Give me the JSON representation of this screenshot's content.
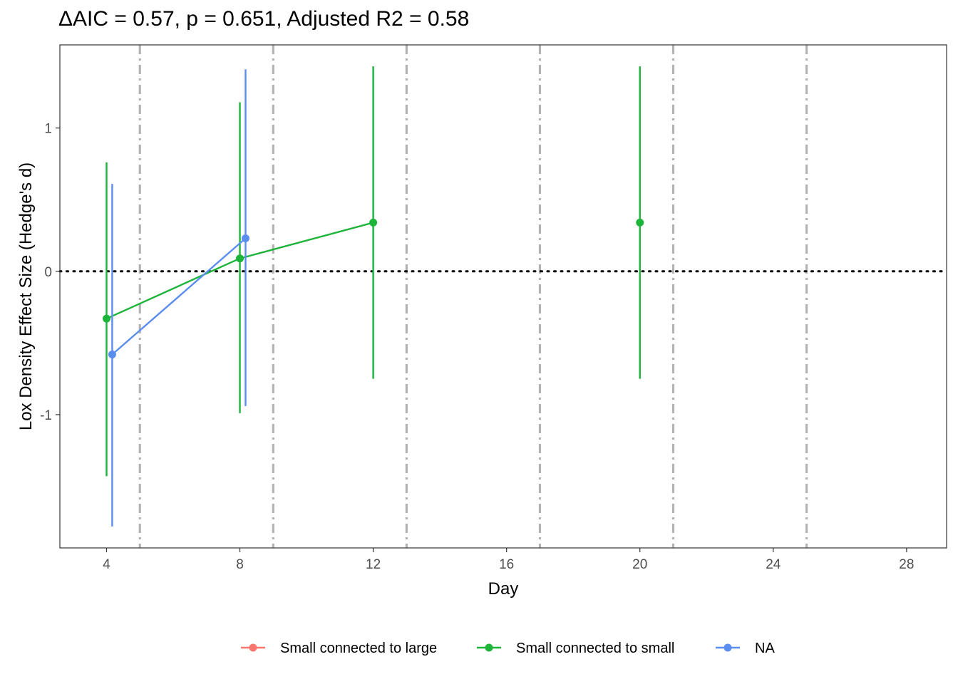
{
  "chart_data": {
    "type": "line",
    "title": "ΔAIC = 0.57, p = 0.651, Adjusted R2 = 0.58",
    "xlabel": "Day",
    "ylabel": "Lox Density Effect Size (Hedge's d)",
    "xlim": [
      2.6,
      29.2
    ],
    "ylim": [
      -1.93,
      1.58
    ],
    "x_ticks": [
      4,
      8,
      12,
      16,
      20,
      24,
      28
    ],
    "y_ticks": [
      -1,
      0,
      1
    ],
    "reference_hline": 0,
    "vlines": [
      5,
      9,
      13,
      17,
      21,
      25
    ],
    "grid": false,
    "legend_position": "bottom",
    "series": [
      {
        "name": "Small connected to large",
        "color": "#F8766D",
        "points": []
      },
      {
        "name": "Small connected to small",
        "color": "#1DB43A",
        "connected": [
          4,
          8,
          12
        ],
        "points": [
          {
            "x": 4,
            "y": -0.33,
            "lo": -1.43,
            "hi": 0.76
          },
          {
            "x": 8,
            "y": 0.09,
            "lo": -0.99,
            "hi": 1.18
          },
          {
            "x": 12,
            "y": 0.34,
            "lo": -0.75,
            "hi": 1.43
          },
          {
            "x": 20,
            "y": 0.34,
            "lo": -0.75,
            "hi": 1.43
          }
        ]
      },
      {
        "name": "NA",
        "color": "#5B8DEF",
        "connected": [
          4.17,
          8.17
        ],
        "points": [
          {
            "x": 4.17,
            "y": -0.58,
            "lo": -1.78,
            "hi": 0.61
          },
          {
            "x": 8.17,
            "y": 0.23,
            "lo": -0.94,
            "hi": 1.41
          }
        ]
      }
    ]
  }
}
